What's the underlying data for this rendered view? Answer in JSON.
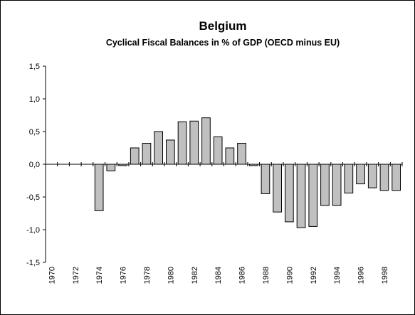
{
  "chart_data": {
    "type": "bar",
    "title": "Belgium",
    "subtitle": "Cyclical Fiscal Balances in % of GDP (OECD minus EU)",
    "categories": [
      "1970",
      null,
      "1972",
      null,
      "1974",
      null,
      "1976",
      null,
      "1978",
      null,
      "1980",
      null,
      "1982",
      null,
      "1984",
      null,
      "1986",
      null,
      "1988",
      null,
      "1990",
      null,
      "1992",
      null,
      "1994",
      null,
      "1996",
      null,
      "1998",
      null
    ],
    "values": [
      0,
      0,
      0,
      0,
      -0.71,
      -0.1,
      -0.02,
      0.25,
      0.32,
      0.5,
      0.37,
      0.65,
      0.66,
      0.71,
      0.42,
      0.25,
      0.32,
      -0.02,
      -0.45,
      -0.73,
      -0.88,
      -0.97,
      -0.95,
      -0.63,
      -0.63,
      -0.44,
      -0.3,
      -0.36,
      -0.4,
      -0.4
    ],
    "color": "#c0c0c0",
    "ylim": [
      -1.5,
      1.5
    ],
    "yticks": [
      {
        "value": -1.5,
        "label": "-1,5"
      },
      {
        "value": -1,
        "label": "-1,0"
      },
      {
        "value": -0.5,
        "label": "-0,5"
      },
      {
        "value": 0,
        "label": "0,0"
      },
      {
        "value": 0.5,
        "label": "0,5"
      },
      {
        "value": 1,
        "label": "1,0"
      },
      {
        "value": 1.5,
        "label": "1,5"
      }
    ],
    "grid": false
  }
}
